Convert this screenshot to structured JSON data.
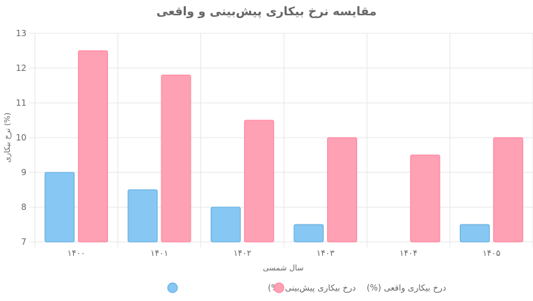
{
  "chart_data": {
    "type": "bar",
    "title": "مقایسه نرخ بیکاری پیش‌بینی و واقعی",
    "xlabel": "سال شمسی",
    "ylabel": "نرخ بیکاری (%)",
    "categories": [
      "۱۴۰۰",
      "۱۴۰۱",
      "۱۴۰۲",
      "۱۴۰۳",
      "۱۴۰۴",
      "۱۴۰۵"
    ],
    "ylim": [
      7,
      13
    ],
    "yticks": [
      7,
      8,
      9,
      10,
      11,
      12,
      13
    ],
    "grid": true,
    "legend_position": "bottom",
    "series": [
      {
        "name": "درخ بیکاری پیش‌بینی (%)",
        "values": [
          9,
          8.5,
          8,
          7.5,
          7,
          7.5
        ],
        "color": "#87c7f3",
        "border": "#5aa8dc"
      },
      {
        "name": "درخ بیکاری واقعی (%)",
        "values": [
          12.5,
          11.8,
          10.5,
          10,
          9.5,
          10
        ],
        "color": "#ffa1b5",
        "border": "#ff7a96"
      }
    ]
  }
}
